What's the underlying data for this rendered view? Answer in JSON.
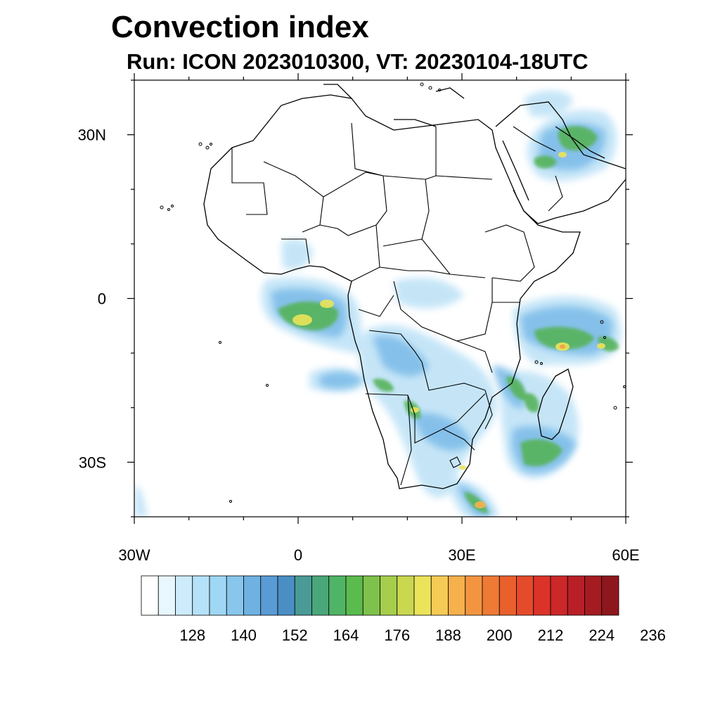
{
  "title": "Convection index",
  "subtitle": "Run: ICON 2023010300,  VT: 20230104-18UTC",
  "map": {
    "region": "Africa",
    "projection": "cylindrical equidistant",
    "lon_range": [
      -30,
      60
    ],
    "lat_range": [
      -40,
      40
    ],
    "x_tick_labels": [
      {
        "lon": -30,
        "label": "30W"
      },
      {
        "lon": 0,
        "label": "0"
      },
      {
        "lon": 30,
        "label": "30E"
      },
      {
        "lon": 60,
        "label": "60E"
      }
    ],
    "y_tick_labels": [
      {
        "lat": 30,
        "label": "30N"
      },
      {
        "lat": 0,
        "label": "0"
      },
      {
        "lat": -30,
        "label": "30S"
      }
    ],
    "minor_lon_ticks": [
      -30,
      -20,
      -10,
      0,
      10,
      20,
      30,
      40,
      50,
      60
    ],
    "minor_lat_ticks": [
      -40,
      -30,
      -20,
      -10,
      0,
      10,
      20,
      30,
      40
    ]
  },
  "colorbar": {
    "labels": [
      "128",
      "140",
      "152",
      "164",
      "176",
      "188",
      "200",
      "212",
      "224",
      "236"
    ],
    "colors": [
      "#ffffff",
      "#e8f6fd",
      "#cdebfa",
      "#b5e2f8",
      "#9fd8f4",
      "#88c6ec",
      "#6fb2e2",
      "#5a9bd5",
      "#4a8ec4",
      "#4a9a96",
      "#4aa77a",
      "#50b466",
      "#5bbb4e",
      "#7ec24b",
      "#a6ce4c",
      "#c9d84f",
      "#ebe35a",
      "#f6cb55",
      "#f6b04c",
      "#f39540",
      "#ee7a35",
      "#e9602d",
      "#e44b2b",
      "#dc3329",
      "#cc2729",
      "#b91f27",
      "#a51b22",
      "#8e171d"
    ]
  }
}
